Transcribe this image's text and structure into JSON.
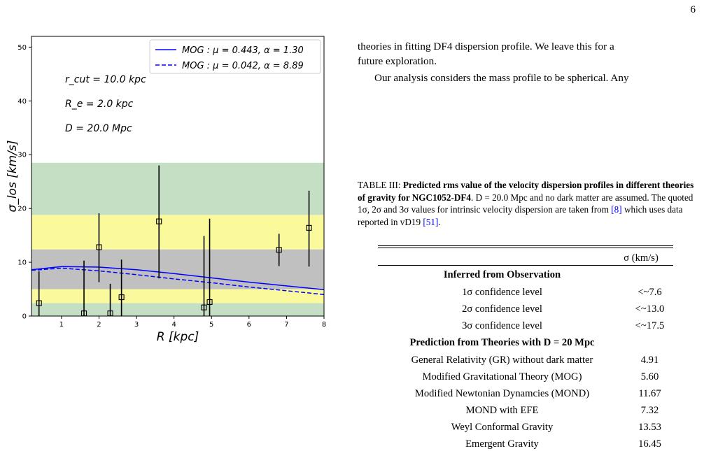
{
  "page_number": "6",
  "chart_data": {
    "type": "scatter",
    "xlabel": "R [kpc]",
    "ylabel": "σ_los [km/s]",
    "xlim": [
      0.2,
      8.0
    ],
    "ylim": [
      0,
      52
    ],
    "x_ticks": [
      "1",
      "2",
      "3",
      "4",
      "5",
      "6",
      "7",
      "8"
    ],
    "y_ticks": [
      "0",
      "10",
      "20",
      "30",
      "40",
      "50"
    ],
    "bands": [
      {
        "y_from": 0,
        "y_to": 2.4,
        "color": "#c4dfc4"
      },
      {
        "y_from": 2.4,
        "y_to": 5.0,
        "color": "#fafa9d"
      },
      {
        "y_from": 5.0,
        "y_to": 12.4,
        "color": "#c0c0c0"
      },
      {
        "y_from": 12.4,
        "y_to": 18.8,
        "color": "#fafa9d"
      },
      {
        "y_from": 18.8,
        "y_to": 28.5,
        "color": "#c4dfc4"
      }
    ],
    "annotations": [
      "r_cut = 10.0 kpc",
      "R_e = 2.0 kpc",
      "D = 20.0 Mpc"
    ],
    "legend": [
      {
        "label": "MOG : μ = 0.443,  α = 1.30",
        "style": "solid",
        "color": "#0000ff"
      },
      {
        "label": "MOG : μ = 0.042,  α = 8.89",
        "style": "dashed",
        "color": "#0000ff"
      }
    ],
    "legend_position": "top-right",
    "series": [
      {
        "name": "MOG : μ = 0.443,  α = 1.30",
        "style": "solid",
        "x": [
          0.2,
          1.0,
          2.0,
          3.0,
          4.0,
          5.0,
          6.0,
          7.0,
          8.0
        ],
        "y": [
          8.6,
          9.2,
          9.1,
          8.6,
          7.9,
          7.1,
          6.3,
          5.6,
          4.9
        ]
      },
      {
        "name": "MOG : μ = 0.042,  α = 8.89",
        "style": "dashed",
        "x": [
          0.2,
          1.0,
          2.0,
          3.0,
          4.0,
          5.0,
          6.0,
          7.0,
          8.0
        ],
        "y": [
          8.5,
          8.9,
          8.4,
          7.7,
          6.9,
          6.2,
          5.4,
          4.7,
          4.0
        ]
      }
    ],
    "points": {
      "x": [
        0.4,
        1.6,
        2.0,
        2.3,
        2.6,
        3.6,
        4.8,
        4.95,
        6.8,
        7.6
      ],
      "y": [
        2.4,
        0.5,
        12.8,
        0.5,
        3.5,
        17.6,
        1.6,
        2.6,
        12.3,
        16.4
      ],
      "err_low": [
        2.4,
        0.5,
        6.5,
        0.5,
        3.5,
        10.6,
        1.6,
        2.6,
        3.0,
        7.2
      ],
      "err_high": [
        5.9,
        9.8,
        6.3,
        5.5,
        7.0,
        10.4,
        13.3,
        15.5,
        3.0,
        6.9
      ]
    }
  },
  "text": {
    "line1": "theories in fitting DF4 dispersion profile. We leave this for a",
    "line2": "future exploration.",
    "line3": "Our analysis considers the mass profile to be spherical. Any"
  },
  "caption": {
    "lead": "TABLE III: ",
    "bold": "Predicted rms value of the velocity dispersion profiles in different theories of gravity for NGC1052-DF4",
    "rest1": ". D = 20.0 Mpc and no dark matter are assumed. The quoted 1σ, 2σ and 3σ values for intrinsic velocity dispersion are taken from ",
    "ref1": "[8]",
    "rest2": " which uses data reported in vD19 ",
    "ref2": "[51]",
    "rest3": "."
  },
  "table": {
    "header": "σ (km/s)",
    "section1": "Inferred from Observation",
    "rows1": [
      {
        "label": "1σ confidence level",
        "value": "<~7.6"
      },
      {
        "label": "2σ confidence level",
        "value": "<~13.0"
      },
      {
        "label": "3σ confidence level",
        "value": "<~17.5"
      }
    ],
    "section2": "Prediction from Theories with D = 20 Mpc",
    "rows2": [
      {
        "label": "General Relativity (GR) without dark matter",
        "value": "4.91"
      },
      {
        "label": "Modified Gravitational Theory (MOG)",
        "value": "5.60"
      },
      {
        "label": "Modified Newtonian Dynamcies (MOND)",
        "value": "11.67"
      },
      {
        "label": "MOND with EFE",
        "value": "7.32"
      },
      {
        "label": "Weyl Conformal Gravity",
        "value": "13.53"
      },
      {
        "label": "Emergent Gravity",
        "value": "16.45"
      }
    ]
  }
}
